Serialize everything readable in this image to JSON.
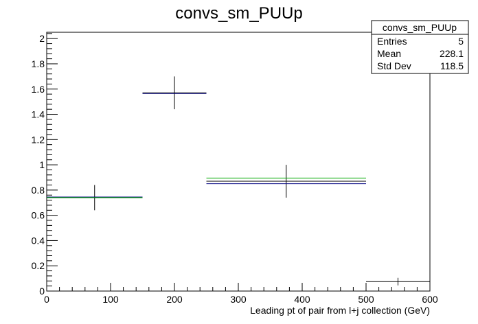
{
  "chart_data": {
    "type": "line",
    "title": "convs_sm_PUUp",
    "xlabel": "Leading pt of pair from l+j collection (GeV)",
    "ylabel": "",
    "xlim": [
      0,
      600
    ],
    "ylim": [
      0,
      2.05
    ],
    "xticks": [
      "0",
      "100",
      "200",
      "300",
      "400",
      "500",
      "600"
    ],
    "yticks": [
      "0",
      "0.2",
      "0.4",
      "0.6",
      "0.8",
      "1",
      "1.2",
      "1.4",
      "1.6",
      "1.8",
      "2"
    ],
    "grid": false,
    "stats_box": {
      "name": "convs_sm_PUUp",
      "rows": [
        {
          "label": "Entries",
          "value": "5"
        },
        {
          "label": "Mean",
          "value": "228.1"
        },
        {
          "label": "Std Dev",
          "value": "118.5"
        }
      ],
      "position": "top-right"
    },
    "series": [
      {
        "color": "#000000",
        "style": "error-bars",
        "bins": [
          {
            "x_low": 0,
            "x_high": 150,
            "y": 0.74,
            "err": 0.1
          },
          {
            "x_low": 150,
            "x_high": 250,
            "y": 1.57,
            "err": 0.13
          },
          {
            "x_low": 250,
            "x_high": 500,
            "y": 0.87,
            "err": 0.13
          },
          {
            "x_low": 500,
            "x_high": 600,
            "y": 0.075,
            "err": 0.03
          }
        ]
      },
      {
        "color": "#000080",
        "style": "step",
        "bins": [
          {
            "x_low": 0,
            "x_high": 150,
            "y": 0.745
          },
          {
            "x_low": 150,
            "x_high": 250,
            "y": 1.565
          },
          {
            "x_low": 250,
            "x_high": 500,
            "y": 0.85
          }
        ]
      },
      {
        "color": "#00aa00",
        "style": "step",
        "bins": [
          {
            "x_low": 0,
            "x_high": 150,
            "y": 0.74
          },
          {
            "x_low": 250,
            "x_high": 500,
            "y": 0.895
          }
        ]
      }
    ]
  }
}
